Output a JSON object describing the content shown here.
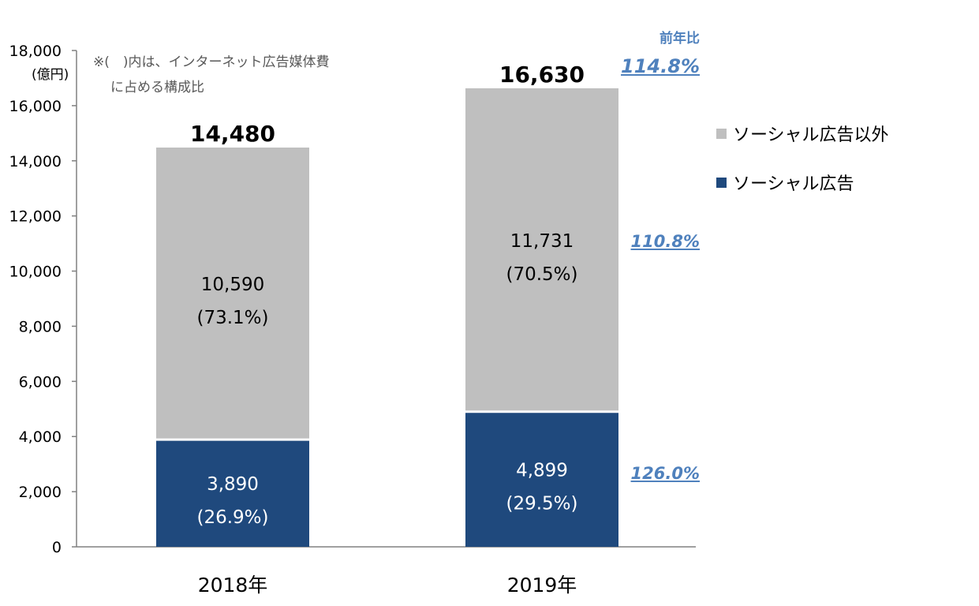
{
  "note": {
    "line1": "※(　)内は、インターネット広告媒体費",
    "line2": "に占める構成比"
  },
  "unit_label": "(億円)",
  "yoy": {
    "header": "前年比",
    "total": "114.8%",
    "other": "110.8%",
    "social": "126.0%"
  },
  "legend": [
    {
      "label": "ソーシャル広告以外",
      "color": "#bfbfbf"
    },
    {
      "label": "ソーシャル広告",
      "color": "#1f497d"
    }
  ],
  "colors": {
    "social": "#1f497d",
    "other": "#bfbfbf",
    "axis": "#808080",
    "accent": "#4f81bd"
  },
  "chart_data": {
    "type": "bar",
    "stacked": true,
    "categories": [
      "2018年",
      "2019年"
    ],
    "series": [
      {
        "name": "ソーシャル広告",
        "values": [
          3890,
          4899
        ],
        "labels": [
          "3,890",
          "4,899"
        ],
        "shares": [
          "(26.9%)",
          "(29.5%)"
        ]
      },
      {
        "name": "ソーシャル広告以外",
        "values": [
          10590,
          11731
        ],
        "labels": [
          "10,590",
          "11,731"
        ],
        "shares": [
          "(73.1%)",
          "(70.5%)"
        ]
      }
    ],
    "totals": [
      14480,
      16630
    ],
    "total_labels": [
      "14,480",
      "16,630"
    ],
    "ylim": [
      0,
      18000
    ],
    "yticks": [
      0,
      2000,
      4000,
      6000,
      8000,
      10000,
      12000,
      14000,
      16000,
      18000
    ],
    "ytick_labels": [
      "0",
      "2,000",
      "4,000",
      "6,000",
      "8,000",
      "10,000",
      "12,000",
      "14,000",
      "16,000",
      "18,000"
    ],
    "grid": false,
    "legend_position": "right"
  }
}
